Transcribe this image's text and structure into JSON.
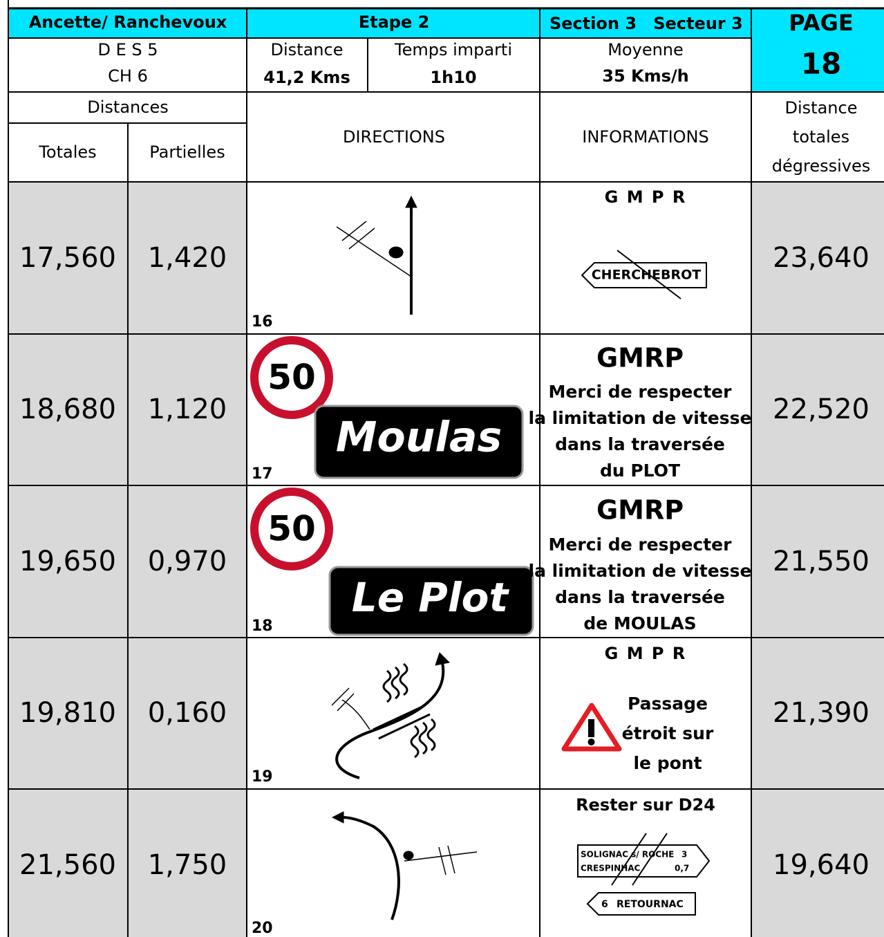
{
  "header": {
    "event": "Ancette/ Ranchevoux",
    "stage": "Etape 2",
    "section": "Section 3",
    "sector": "Secteur 3",
    "page_label": "PAGE",
    "page_number": "18"
  },
  "summary": {
    "special": "D E S 5",
    "ch": "CH 6",
    "distance_label": "Distance",
    "distance": "41,2 Kms",
    "time_label": "Temps imparti",
    "time": "1h10",
    "average_label": "Moyenne",
    "average": "35 Kms/h"
  },
  "columns": {
    "distances": "Distances",
    "totals": "Totales",
    "partials": "Partielles",
    "directions": "DIRECTIONS",
    "informations": "INFORMATIONS",
    "remaining": [
      "Distance",
      "totales",
      "dégressives"
    ]
  },
  "rows": [
    {
      "total": "17,560",
      "partial": "1,420",
      "number": "16",
      "info_title": "G M P R",
      "sign": "CHERCHEBROT",
      "remaining": "23,640"
    },
    {
      "total": "18,680",
      "partial": "1,120",
      "number": "17",
      "speed": "50",
      "place": "Moulas",
      "info_title": "GMRP",
      "info_lines": [
        "Merci de respecter",
        "la limitation de vitesse",
        "dans la traversée",
        "du PLOT"
      ],
      "remaining": "22,520"
    },
    {
      "total": "19,650",
      "partial": "0,970",
      "number": "18",
      "speed": "50",
      "place": "Le Plot",
      "info_title": "GMRP",
      "info_lines": [
        "Merci de respecter",
        "la limitation de vitesse",
        "dans la traversée",
        "de MOULAS"
      ],
      "remaining": "21,550"
    },
    {
      "total": "19,810",
      "partial": "0,160",
      "number": "19",
      "info_title": "G M P R",
      "info_lines": [
        "Passage",
        "étroit sur",
        "le pont"
      ],
      "remaining": "21,390"
    },
    {
      "total": "21,560",
      "partial": "1,750",
      "number": "20",
      "info_title": "Rester sur D24",
      "sign_lines": [
        "SOLIGNAC s/ ROCHE",
        "3",
        "CRESPINHAC",
        "0,7",
        "6",
        "RETOURNAC"
      ],
      "remaining": "19,640"
    }
  ]
}
